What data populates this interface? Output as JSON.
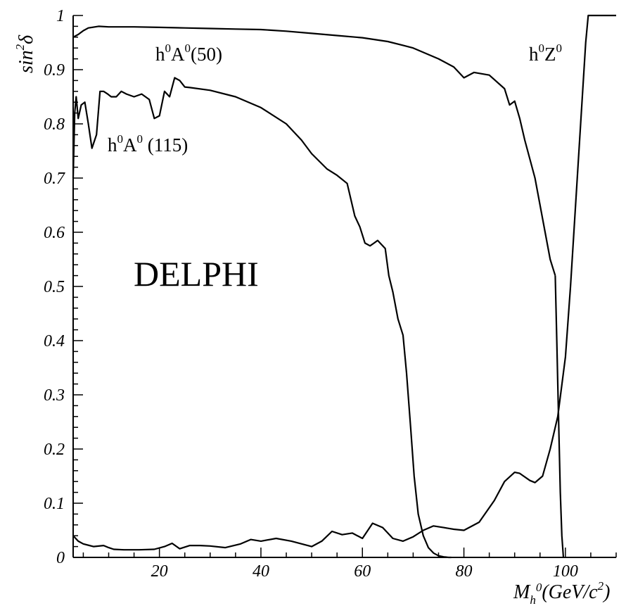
{
  "chart_data": {
    "type": "line",
    "xlabel": {
      "main": "M",
      "sub": "h",
      "sup": "0",
      "rest": "(GeV/c",
      "sup2": "2",
      "end": ")"
    },
    "ylabel": {
      "main": "sin",
      "sup": "2",
      "rest": "δ"
    },
    "xlim": [
      3,
      110
    ],
    "ylim": [
      0,
      1
    ],
    "xticks": [
      "20",
      "40",
      "60",
      "80",
      "100"
    ],
    "xtick_values": [
      20,
      40,
      60,
      80,
      100
    ],
    "yticks": [
      "0",
      "0.1",
      "0.2",
      "0.3",
      "0.4",
      "0.5",
      "0.6",
      "0.7",
      "0.8",
      "0.9",
      "1"
    ],
    "ytick_values": [
      0,
      0.1,
      0.2,
      0.3,
      0.4,
      0.5,
      0.6,
      0.7,
      0.8,
      0.9,
      1
    ],
    "grid": false,
    "series": [
      {
        "name": "h0A0(50)",
        "x": [
          3,
          4,
          5,
          6,
          8,
          10,
          15,
          20,
          25,
          30,
          35,
          40,
          45,
          50,
          55,
          60,
          65,
          68,
          70,
          75,
          78,
          80,
          82,
          85,
          88,
          89,
          90,
          91,
          92,
          94,
          96,
          97,
          98
        ],
        "y": [
          0.96,
          0.965,
          0.972,
          0.977,
          0.98,
          0.979,
          0.979,
          0.978,
          0.977,
          0.976,
          0.975,
          0.974,
          0.971,
          0.967,
          0.963,
          0.959,
          0.952,
          0.945,
          0.94,
          0.92,
          0.905,
          0.885,
          0.895,
          0.89,
          0.865,
          0.835,
          0.842,
          0.81,
          0.77,
          0.7,
          0.6,
          0.55,
          0.52
        ]
      },
      {
        "name": "h0A0 (115)",
        "x": [
          3,
          3.3,
          3.6,
          4,
          4.6,
          5.3,
          6,
          6.7,
          7.6,
          8.3,
          9,
          9.8,
          10.5,
          11.5,
          12.5,
          13.5,
          15,
          16.5,
          18,
          19,
          20,
          21,
          22,
          23,
          24,
          25,
          26,
          30,
          35,
          40,
          45,
          48,
          50,
          53,
          55,
          57,
          58.5,
          59.5,
          60.5,
          61.5,
          62.3,
          63,
          64.5,
          65.2,
          66,
          67,
          68,
          68.7,
          69.5,
          70.2,
          71,
          72,
          73,
          74,
          75,
          76,
          77,
          77.5
        ],
        "y": [
          0.7,
          0.82,
          0.85,
          0.81,
          0.835,
          0.84,
          0.8,
          0.755,
          0.78,
          0.86,
          0.86,
          0.855,
          0.85,
          0.85,
          0.86,
          0.855,
          0.85,
          0.855,
          0.845,
          0.81,
          0.815,
          0.86,
          0.85,
          0.885,
          0.88,
          0.868,
          0.867,
          0.862,
          0.85,
          0.83,
          0.8,
          0.77,
          0.745,
          0.717,
          0.705,
          0.69,
          0.63,
          0.61,
          0.58,
          0.575,
          0.58,
          0.585,
          0.57,
          0.52,
          0.49,
          0.44,
          0.41,
          0.34,
          0.24,
          0.15,
          0.08,
          0.04,
          0.018,
          0.008,
          0.003,
          0.001,
          0.0,
          0.0
        ]
      },
      {
        "name": "h0Z0",
        "x": [
          3,
          4,
          5,
          7,
          9,
          10,
          11,
          13,
          16,
          19,
          21,
          22.5,
          24,
          26,
          28,
          30,
          33,
          36,
          38,
          40,
          43,
          46,
          50,
          52,
          54,
          56,
          58,
          60,
          62,
          64,
          66,
          68,
          70,
          72,
          74,
          76,
          78,
          80,
          83,
          86,
          88,
          90,
          91,
          93,
          94,
          95.5,
          97,
          98.5,
          100,
          101,
          102,
          103,
          104,
          104.5,
          110
        ],
        "y": [
          0.04,
          0.03,
          0.025,
          0.02,
          0.022,
          0.018,
          0.015,
          0.014,
          0.014,
          0.015,
          0.02,
          0.026,
          0.016,
          0.022,
          0.022,
          0.021,
          0.018,
          0.025,
          0.033,
          0.03,
          0.035,
          0.03,
          0.02,
          0.03,
          0.048,
          0.042,
          0.045,
          0.035,
          0.063,
          0.055,
          0.035,
          0.03,
          0.038,
          0.05,
          0.058,
          0.055,
          0.052,
          0.05,
          0.065,
          0.105,
          0.14,
          0.157,
          0.155,
          0.142,
          0.138,
          0.15,
          0.2,
          0.26,
          0.37,
          0.5,
          0.65,
          0.8,
          0.95,
          1.0,
          1.0
        ]
      },
      {
        "name": "h0A0(50)-drop",
        "x": [
          98,
          98.3,
          98.6,
          99,
          99.3,
          99.6
        ],
        "y": [
          0.52,
          0.4,
          0.28,
          0.12,
          0.04,
          0.0
        ]
      }
    ],
    "annotations": {
      "a50": {
        "base": "h",
        "s1": "0",
        "mid": "A",
        "s2": "0",
        "tail": "(50)"
      },
      "a115": {
        "base": "h",
        "s1": "0",
        "mid": "A",
        "s2": "0",
        "tail": " (115)"
      },
      "z0": {
        "base": "h",
        "s1": "0",
        "mid": "Z",
        "s2": "0",
        "tail": ""
      },
      "label": "DELPHI"
    }
  }
}
